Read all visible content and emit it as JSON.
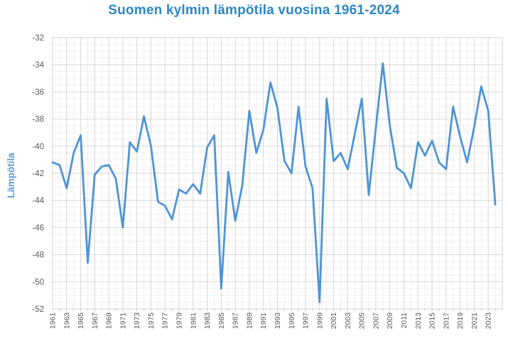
{
  "title": "Suomen kylmin lämpötila vuosina 1961-2024",
  "y_axis_title": "Lämpötila",
  "colors": {
    "title": "#2e86c8",
    "axis_title": "#5b9bd5",
    "line": "#4e94d4",
    "tick_label": "#595959",
    "grid_major": "#d6d6d6",
    "grid_minor": "#efefef",
    "plot_border": "#d0d0d0",
    "tick_mark": "#c9c9c9",
    "background": "#ffffff"
  },
  "chart_data": {
    "type": "line",
    "title": "Suomen kylmin lämpötila vuosina 1961-2024",
    "xlabel": "",
    "ylabel": "Lämpötila",
    "x_start": 1961,
    "x_end": 2024,
    "ylim": [
      -52,
      -32
    ],
    "y_ticks": [
      -32,
      -34,
      -36,
      -38,
      -40,
      -42,
      -44,
      -46,
      -48,
      -50,
      -52
    ],
    "y_minor_step": 0.5,
    "x_minor_step": 1,
    "x_tick_labels": [
      "1961",
      "1963",
      "1965",
      "1967",
      "1969",
      "1971",
      "1973",
      "1975",
      "1977",
      "1979",
      "1981",
      "1983",
      "1985",
      "1987",
      "1989",
      "1991",
      "1993",
      "1995",
      "1997",
      "1999",
      "2001",
      "2003",
      "2005",
      "2007",
      "2009",
      "2011",
      "2013",
      "2015",
      "2017",
      "2019",
      "2021",
      "2023"
    ],
    "grid": "major-and-minor",
    "legend": "none",
    "series": [
      {
        "name": "Suomen kylmin lämpötila",
        "values": [
          -41.2,
          -41.4,
          -43.1,
          -40.5,
          -39.2,
          -48.6,
          -42.1,
          -41.5,
          -41.4,
          -42.4,
          -46.0,
          -39.7,
          -40.4,
          -37.8,
          -40.0,
          -44.1,
          -44.4,
          -45.4,
          -43.2,
          -43.5,
          -42.8,
          -43.5,
          -40.1,
          -39.2,
          -50.5,
          -41.9,
          -45.5,
          -42.9,
          -37.4,
          -40.5,
          -38.8,
          -35.3,
          -37.2,
          -41.1,
          -42.0,
          -37.1,
          -41.5,
          -43.1,
          -51.5,
          -36.5,
          -41.1,
          -40.5,
          -41.7,
          -39.1,
          -36.5,
          -43.6,
          -38.7,
          -33.9,
          -38.5,
          -41.6,
          -42.0,
          -43.1,
          -39.7,
          -40.7,
          -39.6,
          -41.2,
          -41.7,
          -37.1,
          -39.3,
          -41.2,
          -38.6,
          -35.6,
          -37.4,
          -44.3
        ]
      }
    ]
  }
}
